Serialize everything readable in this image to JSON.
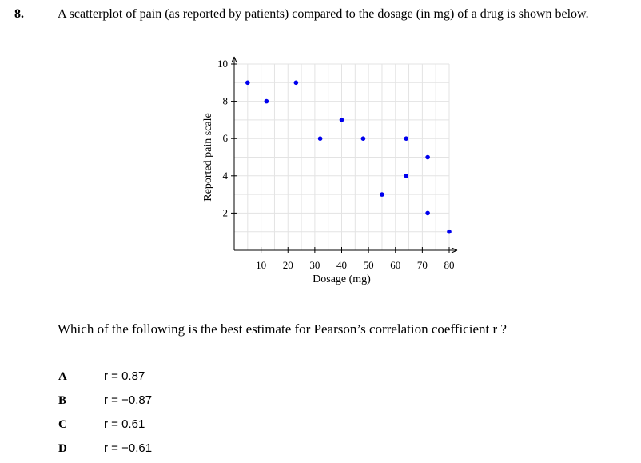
{
  "question": {
    "number": "8.",
    "text": "A scatterplot of pain (as reported by patients) compared to the dosage (in mg) of a drug is shown below.",
    "prompt": "Which of the following is the best estimate for Pearson’s correlation coefficient r ?"
  },
  "options": [
    {
      "letter": "A",
      "text": "r = 0.87"
    },
    {
      "letter": "B",
      "text": "r = −0.87"
    },
    {
      "letter": "C",
      "text": "r = 0.61"
    },
    {
      "letter": "D",
      "text": "r = −0.61"
    }
  ],
  "chart_data": {
    "type": "scatter",
    "xlabel": "Dosage (mg)",
    "ylabel": "Reported pain scale",
    "xlim": [
      0,
      80
    ],
    "ylim": [
      0,
      10
    ],
    "x_ticks": [
      10,
      20,
      30,
      40,
      50,
      60,
      70,
      80
    ],
    "y_ticks": [
      2,
      4,
      6,
      8,
      10
    ],
    "grid": true,
    "point_color": "#0000ee",
    "points": [
      {
        "x": 5,
        "y": 9
      },
      {
        "x": 12,
        "y": 8
      },
      {
        "x": 23,
        "y": 9
      },
      {
        "x": 32,
        "y": 6
      },
      {
        "x": 40,
        "y": 7
      },
      {
        "x": 48,
        "y": 6
      },
      {
        "x": 55,
        "y": 3
      },
      {
        "x": 64,
        "y": 6
      },
      {
        "x": 64,
        "y": 4
      },
      {
        "x": 72,
        "y": 5
      },
      {
        "x": 72,
        "y": 2
      },
      {
        "x": 80,
        "y": 1
      }
    ]
  }
}
